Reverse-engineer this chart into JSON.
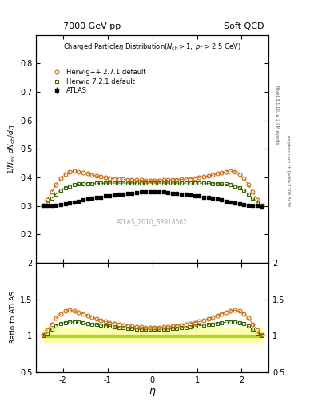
{
  "title_left": "7000 GeV pp",
  "title_right": "Soft QCD",
  "right_label_main": "Rivet 3.1.10, ≥ 2.9M events",
  "right_label_bottom": "mcplots.cern.ch [arXiv:1306.3436]",
  "plot_title": "Charged Particleη Distribution(N_{ch} > 1, p_{T} > 2.5 GeV)",
  "ylabel_main": "1/N_{ev} dN_{ch}/dη",
  "ylabel_ratio": "Ratio to ATLAS",
  "xlabel": "η",
  "watermark": "ATLAS_2010_S8918562",
  "ylim_main": [
    0.1,
    0.9
  ],
  "ylim_ratio": [
    0.5,
    2.0
  ],
  "xlim": [
    -2.6,
    2.6
  ],
  "yticks_main": [
    0.2,
    0.3,
    0.4,
    0.5,
    0.6,
    0.7,
    0.8
  ],
  "xticks": [
    -2,
    -1,
    0,
    1,
    2
  ],
  "atlas_eta": [
    -2.45,
    -2.35,
    -2.25,
    -2.15,
    -2.05,
    -1.95,
    -1.85,
    -1.75,
    -1.65,
    -1.55,
    -1.45,
    -1.35,
    -1.25,
    -1.15,
    -1.05,
    -0.95,
    -0.85,
    -0.75,
    -0.65,
    -0.55,
    -0.45,
    -0.35,
    -0.25,
    -0.15,
    -0.05,
    0.05,
    0.15,
    0.25,
    0.35,
    0.45,
    0.55,
    0.65,
    0.75,
    0.85,
    0.95,
    1.05,
    1.15,
    1.25,
    1.35,
    1.45,
    1.55,
    1.65,
    1.75,
    1.85,
    1.95,
    2.05,
    2.15,
    2.25,
    2.35,
    2.45
  ],
  "atlas_y": [
    0.298,
    0.298,
    0.3,
    0.302,
    0.305,
    0.308,
    0.311,
    0.314,
    0.317,
    0.32,
    0.323,
    0.326,
    0.329,
    0.331,
    0.334,
    0.336,
    0.338,
    0.34,
    0.342,
    0.344,
    0.345,
    0.347,
    0.348,
    0.349,
    0.349,
    0.349,
    0.349,
    0.348,
    0.347,
    0.345,
    0.344,
    0.342,
    0.34,
    0.338,
    0.336,
    0.334,
    0.331,
    0.329,
    0.326,
    0.323,
    0.32,
    0.317,
    0.314,
    0.311,
    0.308,
    0.305,
    0.302,
    0.3,
    0.298,
    0.297
  ],
  "atlas_yerr": [
    0.005,
    0.005,
    0.005,
    0.005,
    0.005,
    0.005,
    0.005,
    0.005,
    0.005,
    0.005,
    0.005,
    0.005,
    0.005,
    0.005,
    0.005,
    0.005,
    0.005,
    0.005,
    0.005,
    0.005,
    0.005,
    0.005,
    0.005,
    0.005,
    0.005,
    0.005,
    0.005,
    0.005,
    0.005,
    0.005,
    0.005,
    0.005,
    0.005,
    0.005,
    0.005,
    0.005,
    0.005,
    0.005,
    0.005,
    0.005,
    0.005,
    0.005,
    0.005,
    0.005,
    0.005,
    0.005,
    0.005,
    0.005,
    0.005,
    0.005
  ],
  "herwig_pp_eta": [
    -2.45,
    -2.35,
    -2.25,
    -2.15,
    -2.05,
    -1.95,
    -1.85,
    -1.75,
    -1.65,
    -1.55,
    -1.45,
    -1.35,
    -1.25,
    -1.15,
    -1.05,
    -0.95,
    -0.85,
    -0.75,
    -0.65,
    -0.55,
    -0.45,
    -0.35,
    -0.25,
    -0.15,
    -0.05,
    0.05,
    0.15,
    0.25,
    0.35,
    0.45,
    0.55,
    0.65,
    0.75,
    0.85,
    0.95,
    1.05,
    1.15,
    1.25,
    1.35,
    1.45,
    1.55,
    1.65,
    1.75,
    1.85,
    1.95,
    2.05,
    2.15,
    2.25,
    2.35,
    2.45
  ],
  "herwig_pp_y": [
    0.302,
    0.322,
    0.348,
    0.374,
    0.396,
    0.412,
    0.42,
    0.422,
    0.42,
    0.417,
    0.413,
    0.408,
    0.405,
    0.402,
    0.399,
    0.397,
    0.395,
    0.394,
    0.393,
    0.392,
    0.391,
    0.39,
    0.39,
    0.389,
    0.389,
    0.389,
    0.389,
    0.39,
    0.39,
    0.391,
    0.392,
    0.393,
    0.394,
    0.395,
    0.397,
    0.399,
    0.402,
    0.405,
    0.408,
    0.413,
    0.417,
    0.42,
    0.422,
    0.42,
    0.412,
    0.396,
    0.374,
    0.348,
    0.322,
    0.302
  ],
  "herwig7_eta": [
    -2.45,
    -2.35,
    -2.25,
    -2.15,
    -2.05,
    -1.95,
    -1.85,
    -1.75,
    -1.65,
    -1.55,
    -1.45,
    -1.35,
    -1.25,
    -1.15,
    -1.05,
    -0.95,
    -0.85,
    -0.75,
    -0.65,
    -0.55,
    -0.45,
    -0.35,
    -0.25,
    -0.15,
    -0.05,
    0.05,
    0.15,
    0.25,
    0.35,
    0.45,
    0.55,
    0.65,
    0.75,
    0.85,
    0.95,
    1.05,
    1.15,
    1.25,
    1.35,
    1.45,
    1.55,
    1.65,
    1.75,
    1.85,
    1.95,
    2.05,
    2.15,
    2.25,
    2.35,
    2.45
  ],
  "herwig7_y": [
    0.298,
    0.31,
    0.326,
    0.342,
    0.356,
    0.364,
    0.37,
    0.374,
    0.376,
    0.377,
    0.378,
    0.378,
    0.379,
    0.379,
    0.38,
    0.38,
    0.38,
    0.38,
    0.38,
    0.38,
    0.38,
    0.38,
    0.38,
    0.38,
    0.38,
    0.38,
    0.38,
    0.38,
    0.38,
    0.38,
    0.38,
    0.38,
    0.38,
    0.38,
    0.38,
    0.38,
    0.379,
    0.379,
    0.378,
    0.378,
    0.377,
    0.376,
    0.374,
    0.37,
    0.364,
    0.356,
    0.342,
    0.326,
    0.31,
    0.298
  ],
  "band_color_yellow": "#ffff99",
  "band_color_green": "#99cc00",
  "band_alpha": 0.7,
  "band_y_upper": [
    1.016,
    1.016,
    1.016,
    1.016,
    1.016,
    1.016,
    1.016,
    1.016,
    1.016,
    1.016,
    1.016,
    1.016,
    1.016,
    1.016,
    1.016,
    1.016,
    1.016,
    1.016,
    1.016,
    1.016,
    1.016,
    1.016,
    1.016,
    1.016,
    1.016,
    1.016,
    1.016,
    1.016,
    1.016,
    1.016,
    1.016,
    1.016,
    1.016,
    1.016,
    1.016,
    1.016,
    1.016,
    1.016,
    1.016,
    1.016,
    1.016,
    1.016,
    1.016,
    1.016,
    1.016,
    1.016,
    1.016,
    1.016,
    1.016,
    1.016
  ],
  "band_y_lower": [
    0.984,
    0.984,
    0.984,
    0.984,
    0.984,
    0.984,
    0.984,
    0.984,
    0.984,
    0.984,
    0.984,
    0.984,
    0.984,
    0.984,
    0.984,
    0.984,
    0.984,
    0.984,
    0.984,
    0.984,
    0.984,
    0.984,
    0.984,
    0.984,
    0.984,
    0.984,
    0.984,
    0.984,
    0.984,
    0.984,
    0.984,
    0.984,
    0.984,
    0.984,
    0.984,
    0.984,
    0.984,
    0.984,
    0.984,
    0.984,
    0.984,
    0.984,
    0.984,
    0.984,
    0.984,
    0.984,
    0.984,
    0.984,
    0.984,
    0.984
  ],
  "orange_color": "#cc6600",
  "green_color": "#336600",
  "black_color": "#000000"
}
